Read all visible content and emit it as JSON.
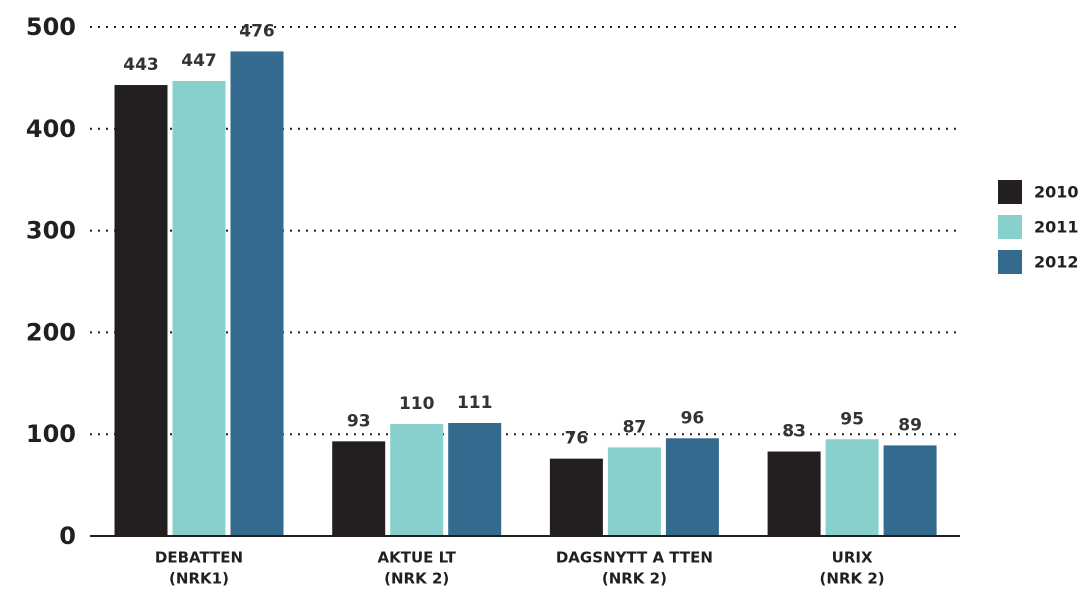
{
  "chart_data": {
    "type": "bar",
    "categories": [
      [
        "DEBATTEN",
        "(NRK1)"
      ],
      [
        "AKTUE LT",
        "(NRK 2)"
      ],
      [
        "DAGSNYTT A TTEN",
        "(NRK 2)"
      ],
      [
        "URIX",
        "(NRK 2)"
      ]
    ],
    "series": [
      {
        "name": "2010",
        "color": "#231f20",
        "values": [
          443,
          93,
          76,
          83
        ]
      },
      {
        "name": "2011",
        "color": "#88d0cb",
        "values": [
          447,
          110,
          87,
          95
        ]
      },
      {
        "name": "2012",
        "color": "#346a8e",
        "values": [
          476,
          111,
          96,
          89
        ]
      }
    ],
    "ylim": [
      0,
      500
    ],
    "yticks": [
      0,
      100,
      200,
      300,
      400,
      500
    ],
    "grid": true,
    "legend": "right"
  }
}
